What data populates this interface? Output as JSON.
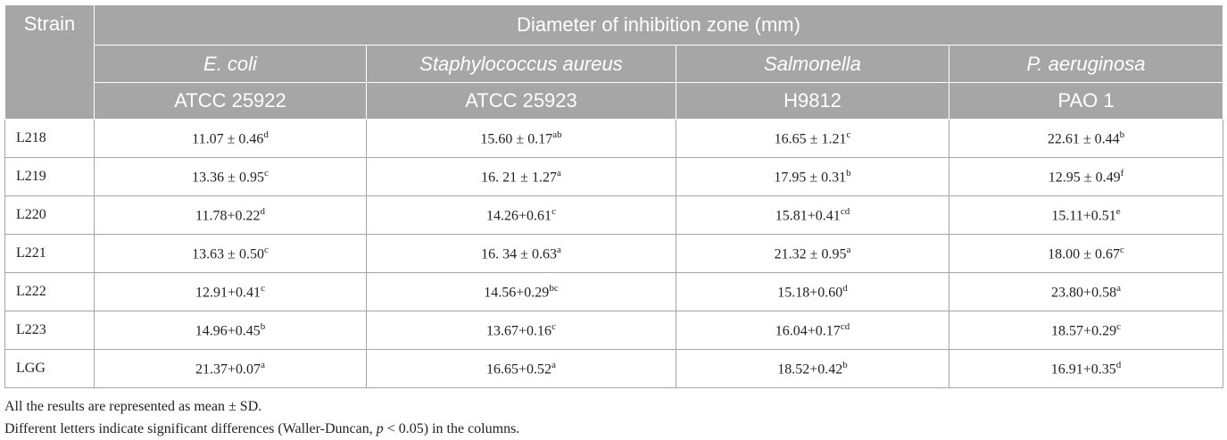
{
  "table": {
    "header": {
      "strain": "Strain",
      "group": "Diameter of inhibition zone (mm)",
      "species": [
        "E. coli",
        "Staphylococcus aureus",
        "Salmonella",
        "P. aeruginosa"
      ],
      "strains": [
        "ATCC 25922",
        "ATCC 25923",
        "H9812",
        "PAO 1"
      ]
    },
    "rows": [
      [
        "L218",
        {
          "text": "11.07 ± 0.46",
          "sup": "d"
        },
        {
          "text": "15.60 ± 0.17",
          "sup": "ab"
        },
        {
          "text": "16.65 ± 1.21",
          "sup": "c"
        },
        {
          "text": "22.61 ± 0.44",
          "sup": "b"
        }
      ],
      [
        "L219",
        {
          "text": "13.36 ± 0.95",
          "sup": "c"
        },
        {
          "text": "16. 21 ± 1.27",
          "sup": "a"
        },
        {
          "text": "17.95 ± 0.31",
          "sup": "b"
        },
        {
          "text": "12.95 ± 0.49",
          "sup": "f"
        }
      ],
      [
        "L220",
        {
          "text": "11.78+0.22",
          "sup": "d"
        },
        {
          "text": "14.26+0.61",
          "sup": "c"
        },
        {
          "text": "15.81+0.41",
          "sup": "cd"
        },
        {
          "text": "15.11+0.51",
          "sup": "e"
        }
      ],
      [
        "L221",
        {
          "text": "13.63 ± 0.50",
          "sup": "c"
        },
        {
          "text": "16. 34 ± 0.63",
          "sup": "a"
        },
        {
          "text": "21.32 ± 0.95",
          "sup": "a"
        },
        {
          "text": "18.00 ± 0.67",
          "sup": "c"
        }
      ],
      [
        "L222",
        {
          "text": "12.91+0.41",
          "sup": "c"
        },
        {
          "text": "14.56+0.29",
          "sup": "bc"
        },
        {
          "text": "15.18+0.60",
          "sup": "d"
        },
        {
          "text": "23.80+0.58",
          "sup": "a"
        }
      ],
      [
        "L223",
        {
          "text": "14.96+0.45",
          "sup": "b"
        },
        {
          "text": "13.67+0.16",
          "sup": "c"
        },
        {
          "text": "16.04+0.17",
          "sup": "cd"
        },
        {
          "text": "18.57+0.29",
          "sup": "c"
        }
      ],
      [
        "LGG",
        {
          "text": "21.37+0.07",
          "sup": "a"
        },
        {
          "text": "16.65+0.52",
          "sup": "a"
        },
        {
          "text": "18.52+0.42",
          "sup": "b"
        },
        {
          "text": "16.91+0.35",
          "sup": "d"
        }
      ]
    ]
  },
  "footnotes": {
    "note1": "All the results are represented as mean ± SD.",
    "note2": [
      "Different letters indicate significant differences (Waller-Duncan, ",
      "p",
      " < 0.05) in the columns."
    ]
  }
}
